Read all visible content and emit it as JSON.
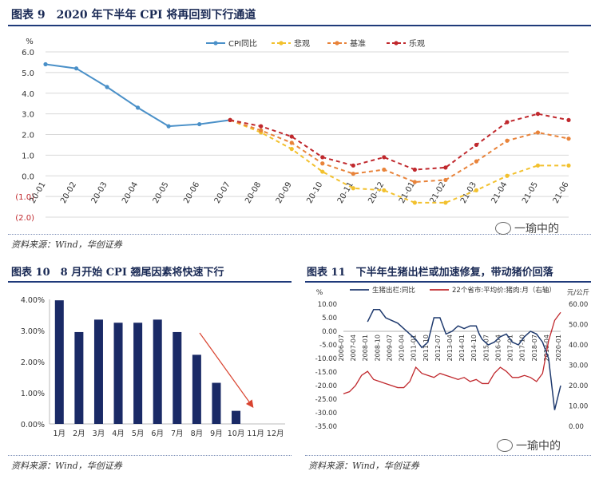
{
  "figure9": {
    "title": "图表 9　2020 年下半年 CPI 将再回到下行通道",
    "source": "资料来源：Wind，华创证券",
    "watermark": "一瑜中的"
  },
  "figure10": {
    "title": "图表 10　8 月开始 CPI 翘尾因素将快速下行",
    "source": "资料来源：Wind，华创证券"
  },
  "figure11": {
    "title": "图表 11　下半年生猪出栏或加速修复，带动猪价回落",
    "source": "资料来源：Wind，华创证券",
    "watermark": "一瑜中的"
  },
  "colors": {
    "title": "#1a2a55",
    "rule": "#1f3a7a",
    "cpi": "#4a90c8",
    "pessimistic": "#f2c12e",
    "base": "#e8833a",
    "optimistic": "#c0282d",
    "bars": "#1a2a66",
    "hog_supply": "#1f3a6e",
    "hog_price": "#c0282d",
    "arrow": "#d9432f"
  },
  "chart_data": [
    {
      "type": "line",
      "unit": "%",
      "x": [
        "20-01",
        "20-02",
        "20-03",
        "20-04",
        "20-05",
        "20-06",
        "20-07",
        "20-08",
        "20-09",
        "20-10",
        "20-11",
        "20-12",
        "21-01",
        "21-02",
        "21-03",
        "21-04",
        "21-05",
        "21-06"
      ],
      "ylim": [
        -2.0,
        6.0
      ],
      "yticks": [
        "6.0",
        "5.0",
        "4.0",
        "3.0",
        "2.0",
        "1.0",
        "0.0",
        "(1.0)",
        "(2.0)"
      ],
      "legend_position": "top",
      "series": [
        {
          "name": "CPI同比",
          "style": "solid",
          "values": [
            5.4,
            5.2,
            4.3,
            3.3,
            2.4,
            2.5,
            2.7,
            null,
            null,
            null,
            null,
            null,
            null,
            null,
            null,
            null,
            null,
            null
          ]
        },
        {
          "name": "悲观",
          "style": "dashed",
          "values": [
            null,
            null,
            null,
            null,
            null,
            null,
            2.7,
            2.1,
            1.3,
            0.2,
            -0.6,
            -0.7,
            -1.3,
            -1.3,
            -0.7,
            0.0,
            0.5,
            0.5
          ]
        },
        {
          "name": "基准",
          "style": "dashed",
          "values": [
            null,
            null,
            null,
            null,
            null,
            null,
            2.7,
            2.2,
            1.6,
            0.6,
            0.1,
            0.3,
            -0.3,
            -0.2,
            0.7,
            1.7,
            2.1,
            1.8
          ]
        },
        {
          "name": "乐观",
          "style": "dashed",
          "values": [
            null,
            null,
            null,
            null,
            null,
            null,
            2.7,
            2.4,
            1.9,
            0.9,
            0.5,
            0.9,
            0.3,
            0.4,
            1.5,
            2.6,
            3.0,
            2.7
          ]
        }
      ]
    },
    {
      "type": "bar",
      "categories": [
        "1月",
        "2月",
        "3月",
        "4月",
        "5月",
        "6月",
        "7月",
        "8月",
        "9月",
        "10月",
        "11月",
        "12月"
      ],
      "values": [
        3.97,
        2.95,
        3.35,
        3.25,
        3.25,
        3.35,
        2.95,
        2.22,
        1.32,
        0.42,
        null,
        null
      ],
      "ylim": [
        0,
        4.0
      ],
      "yticks": [
        "4.00%",
        "3.00%",
        "2.00%",
        "1.00%",
        "0.00%"
      ],
      "annotation": "downward arrow from 8月 to 11月"
    },
    {
      "type": "line",
      "unit_left": "%",
      "unit_right": "元/公斤",
      "ylim_left": [
        -35,
        10
      ],
      "ylim_right": [
        0,
        60
      ],
      "yticks_left": [
        "10.00",
        "5.00",
        "0.00",
        "-5.00",
        "-10.00",
        "-15.00",
        "-20.00",
        "-25.00",
        "-30.00",
        "-35.00"
      ],
      "yticks_right": [
        "60.00",
        "50.00",
        "40.00",
        "30.00",
        "20.00",
        "10.00",
        "0.00"
      ],
      "x_labels": [
        "2006-07",
        "2007-04",
        "2008-01",
        "2008-10",
        "2009-07",
        "2010-04",
        "2011-01",
        "2011-10",
        "2012-07",
        "2013-04",
        "2014-01",
        "2014-10",
        "2015-07",
        "2016-04",
        "2017-01",
        "2017-10",
        "2018-07",
        "2019-04",
        "2020-01"
      ],
      "legend_position": "top",
      "series": [
        {
          "name": "生猪出栏:同比",
          "axis": "left",
          "points": [
            [
              4,
              3.5
            ],
            [
              5,
              8
            ],
            [
              6,
              8
            ],
            [
              7,
              5
            ],
            [
              8,
              4
            ],
            [
              9,
              3
            ],
            [
              10,
              1
            ],
            [
              11,
              -1
            ],
            [
              12,
              -3
            ],
            [
              13,
              -6
            ],
            [
              14,
              -4
            ],
            [
              15,
              5
            ],
            [
              16,
              5
            ],
            [
              17,
              -1
            ],
            [
              18,
              0
            ],
            [
              19,
              2
            ],
            [
              20,
              1
            ],
            [
              21,
              2
            ],
            [
              22,
              2
            ],
            [
              22.5,
              -1
            ],
            [
              23,
              -3
            ],
            [
              24,
              -5
            ],
            [
              25,
              -4
            ],
            [
              26,
              -2
            ],
            [
              27,
              -1
            ],
            [
              28,
              -4
            ],
            [
              29,
              -5
            ],
            [
              30,
              -2
            ],
            [
              31,
              0
            ],
            [
              32,
              -1
            ],
            [
              33,
              -4
            ],
            [
              34,
              -10
            ],
            [
              35,
              -29
            ],
            [
              36,
              -20
            ]
          ]
        },
        {
          "name": "22个省市:平均价:猪肉:月（右轴）",
          "axis": "right",
          "points": [
            [
              0,
              16
            ],
            [
              1,
              17
            ],
            [
              2,
              20
            ],
            [
              3,
              25
            ],
            [
              4,
              27
            ],
            [
              5,
              23
            ],
            [
              6,
              22
            ],
            [
              7,
              21
            ],
            [
              8,
              20
            ],
            [
              9,
              19
            ],
            [
              10,
              19
            ],
            [
              11,
              22
            ],
            [
              12,
              29
            ],
            [
              13,
              26
            ],
            [
              14,
              25
            ],
            [
              15,
              24
            ],
            [
              16,
              26
            ],
            [
              17,
              25
            ],
            [
              18,
              24
            ],
            [
              19,
              23
            ],
            [
              20,
              24
            ],
            [
              21,
              22
            ],
            [
              22,
              23
            ],
            [
              23,
              21
            ],
            [
              24,
              21
            ],
            [
              25,
              26
            ],
            [
              26,
              29
            ],
            [
              27,
              27
            ],
            [
              28,
              24
            ],
            [
              29,
              24
            ],
            [
              30,
              25
            ],
            [
              31,
              24
            ],
            [
              32,
              22
            ],
            [
              33,
              26
            ],
            [
              34,
              42
            ],
            [
              35,
              52
            ],
            [
              36,
              56
            ]
          ]
        }
      ]
    }
  ]
}
